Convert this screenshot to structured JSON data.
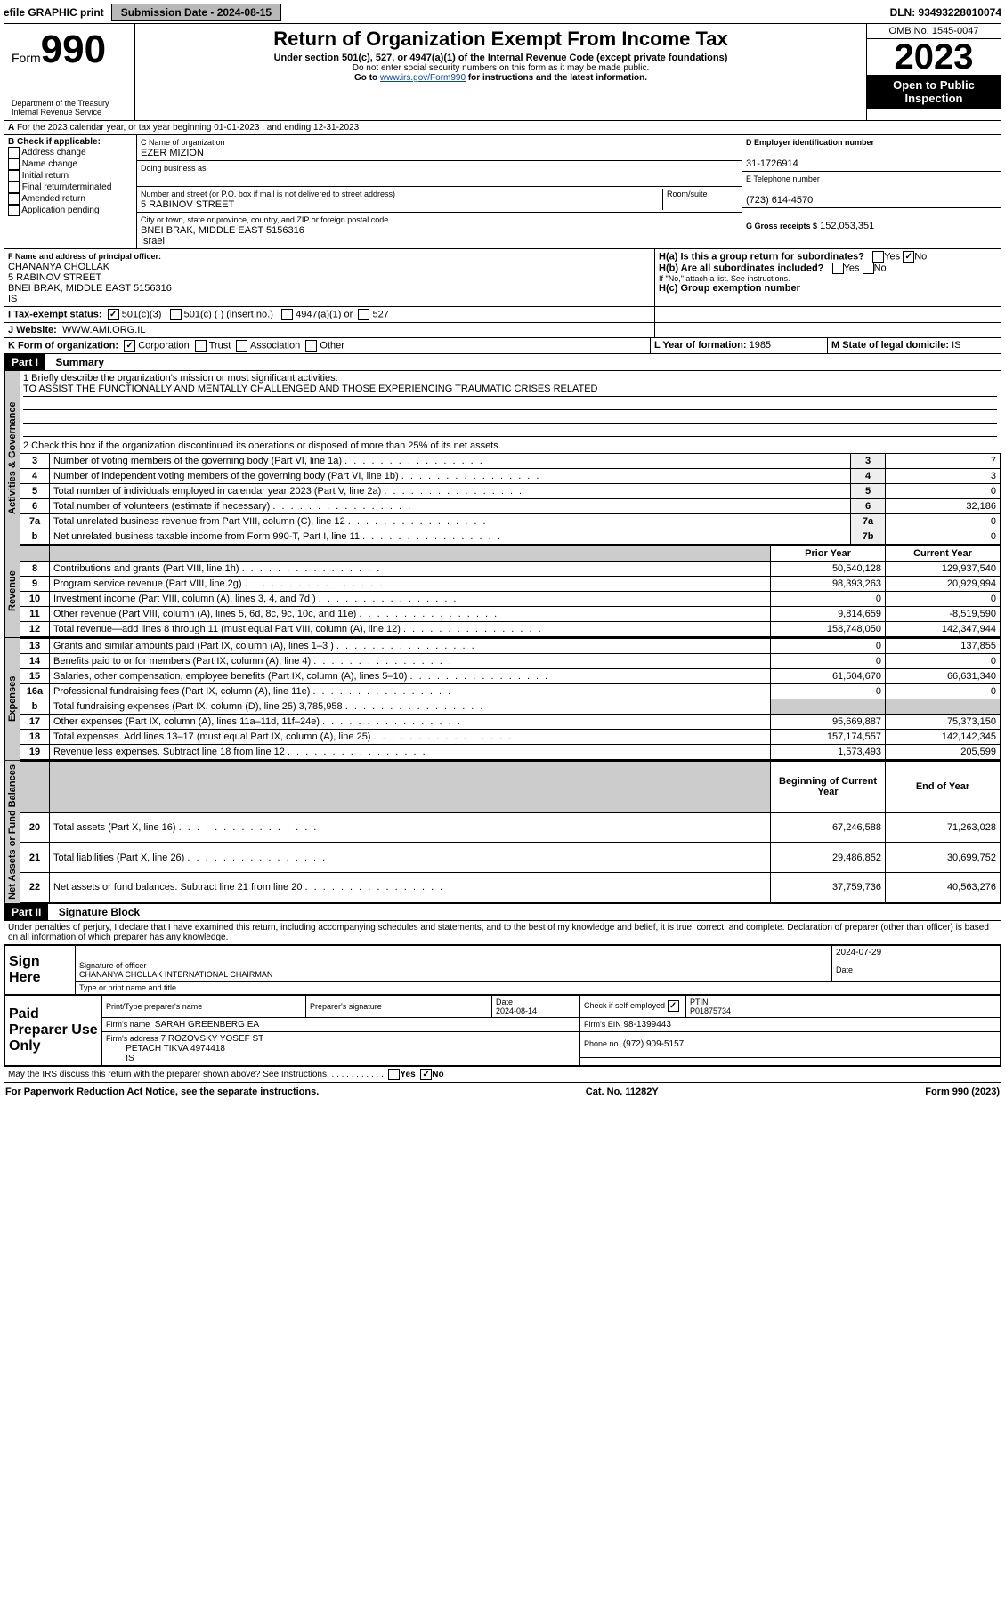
{
  "topbar": {
    "efile": "efile GRAPHIC print",
    "submission_label": "Submission Date - 2024-08-15",
    "dln": "DLN: 93493228010074"
  },
  "header": {
    "form_label": "Form",
    "form_number": "990",
    "dept": "Department of the Treasury Internal Revenue Service",
    "title": "Return of Organization Exempt From Income Tax",
    "sub1": "Under section 501(c), 527, or 4947(a)(1) of the Internal Revenue Code (except private foundations)",
    "sub2": "Do not enter social security numbers on this form as it may be made public.",
    "sub3_prefix": "Go to ",
    "sub3_link": "www.irs.gov/Form990",
    "sub3_suffix": " for instructions and the latest information.",
    "omb": "OMB No. 1545-0047",
    "year": "2023",
    "open": "Open to Public Inspection"
  },
  "line_a": "For the 2023 calendar year, or tax year beginning 01-01-2023  , and ending 12-31-2023",
  "section_b": {
    "header": "B Check if applicable:",
    "opts": [
      "Address change",
      "Name change",
      "Initial return",
      "Final return/terminated",
      "Amended return",
      "Application pending"
    ],
    "c_label": "C Name of organization",
    "c_name": "EZER MIZION",
    "dba_label": "Doing business as",
    "addr_label": "Number and street (or P.O. box if mail is not delivered to street address)",
    "room_label": "Room/suite",
    "addr": "5 RABINOV STREET",
    "city_label": "City or town, state or province, country, and ZIP or foreign postal code",
    "city": "BNEI BRAK, MIDDLE EAST  5156316",
    "country": "Israel",
    "d_label": "D Employer identification number",
    "d_val": "31-1726914",
    "e_label": "E Telephone number",
    "e_val": "(723) 614-4570",
    "g_label": "G Gross receipts $",
    "g_val": "152,053,351",
    "f_label": "F  Name and address of principal officer:",
    "f_name": "CHANANYA CHOLLAK",
    "f_addr1": "5 RABINOV STREET",
    "f_addr2": "BNEI BRAK, MIDDLE EAST  5156316",
    "f_addr3": "IS",
    "ha_label": "H(a)  Is this a group return for subordinates?",
    "hb_label": "H(b)  Are all subordinates included?",
    "hb_note": "If \"No,\" attach a list. See instructions.",
    "hc_label": "H(c)  Group exemption number",
    "yes": "Yes",
    "no": "No"
  },
  "line_i": {
    "label": "I  Tax-exempt status:",
    "opts": [
      "501(c)(3)",
      "501(c) (   ) (insert no.)",
      "4947(a)(1) or",
      "527"
    ]
  },
  "line_j": {
    "label": "J  Website:",
    "val": "WWW.AMI.ORG.IL"
  },
  "line_k": {
    "label": "K Form of organization:",
    "opts": [
      "Corporation",
      "Trust",
      "Association",
      "Other"
    ]
  },
  "line_l": {
    "label": "L Year of formation:",
    "val": "1985"
  },
  "line_m": {
    "label": "M State of legal domicile:",
    "val": "IS"
  },
  "part1": {
    "hdr": "Part I",
    "title": "Summary",
    "mission_label": "1  Briefly describe the organization's mission or most significant activities:",
    "mission": "TO ASSIST THE FUNCTIONALLY AND MENTALLY CHALLENGED AND THOSE EXPERIENCING TRAUMATIC CRISES RELATED",
    "line2": "2  Check this box        if the organization discontinued its operations or disposed of more than 25% of its net assets.",
    "tabs": {
      "gov": "Activities & Governance",
      "rev": "Revenue",
      "exp": "Expenses",
      "net": "Net Assets or Fund Balances"
    },
    "col_prior": "Prior Year",
    "col_current": "Current Year",
    "col_boy": "Beginning of Current Year",
    "col_eoy": "End of Year",
    "gov_lines": [
      {
        "n": "3",
        "txt": "Number of voting members of the governing body (Part VI, line 1a)",
        "box": "3",
        "val": "7"
      },
      {
        "n": "4",
        "txt": "Number of independent voting members of the governing body (Part VI, line 1b)",
        "box": "4",
        "val": "3"
      },
      {
        "n": "5",
        "txt": "Total number of individuals employed in calendar year 2023 (Part V, line 2a)",
        "box": "5",
        "val": "0"
      },
      {
        "n": "6",
        "txt": "Total number of volunteers (estimate if necessary)",
        "box": "6",
        "val": "32,186"
      },
      {
        "n": "7a",
        "txt": "Total unrelated business revenue from Part VIII, column (C), line 12",
        "box": "7a",
        "val": "0"
      },
      {
        "n": "b",
        "txt": "Net unrelated business taxable income from Form 990-T, Part I, line 11",
        "box": "7b",
        "val": "0"
      }
    ],
    "rev_lines": [
      {
        "n": "8",
        "txt": "Contributions and grants (Part VIII, line 1h)",
        "p": "50,540,128",
        "c": "129,937,540"
      },
      {
        "n": "9",
        "txt": "Program service revenue (Part VIII, line 2g)",
        "p": "98,393,263",
        "c": "20,929,994"
      },
      {
        "n": "10",
        "txt": "Investment income (Part VIII, column (A), lines 3, 4, and 7d )",
        "p": "0",
        "c": "0"
      },
      {
        "n": "11",
        "txt": "Other revenue (Part VIII, column (A), lines 5, 6d, 8c, 9c, 10c, and 11e)",
        "p": "9,814,659",
        "c": "-8,519,590"
      },
      {
        "n": "12",
        "txt": "Total revenue—add lines 8 through 11 (must equal Part VIII, column (A), line 12)",
        "p": "158,748,050",
        "c": "142,347,944"
      }
    ],
    "exp_lines": [
      {
        "n": "13",
        "txt": "Grants and similar amounts paid (Part IX, column (A), lines 1–3 )",
        "p": "0",
        "c": "137,855"
      },
      {
        "n": "14",
        "txt": "Benefits paid to or for members (Part IX, column (A), line 4)",
        "p": "0",
        "c": "0"
      },
      {
        "n": "15",
        "txt": "Salaries, other compensation, employee benefits (Part IX, column (A), lines 5–10)",
        "p": "61,504,670",
        "c": "66,631,340"
      },
      {
        "n": "16a",
        "txt": "Professional fundraising fees (Part IX, column (A), line 11e)",
        "p": "0",
        "c": "0"
      },
      {
        "n": "b",
        "txt": "Total fundraising expenses (Part IX, column (D), line 25) 3,785,958",
        "p": "",
        "c": ""
      },
      {
        "n": "17",
        "txt": "Other expenses (Part IX, column (A), lines 11a–11d, 11f–24e)",
        "p": "95,669,887",
        "c": "75,373,150"
      },
      {
        "n": "18",
        "txt": "Total expenses. Add lines 13–17 (must equal Part IX, column (A), line 25)",
        "p": "157,174,557",
        "c": "142,142,345"
      },
      {
        "n": "19",
        "txt": "Revenue less expenses. Subtract line 18 from line 12",
        "p": "1,573,493",
        "c": "205,599"
      }
    ],
    "net_lines": [
      {
        "n": "20",
        "txt": "Total assets (Part X, line 16)",
        "p": "67,246,588",
        "c": "71,263,028"
      },
      {
        "n": "21",
        "txt": "Total liabilities (Part X, line 26)",
        "p": "29,486,852",
        "c": "30,699,752"
      },
      {
        "n": "22",
        "txt": "Net assets or fund balances. Subtract line 21 from line 20",
        "p": "37,759,736",
        "c": "40,563,276"
      }
    ]
  },
  "part2": {
    "hdr": "Part II",
    "title": "Signature Block",
    "decl": "Under penalties of perjury, I declare that I have examined this return, including accompanying schedules and statements, and to the best of my knowledge and belief, it is true, correct, and complete. Declaration of preparer (other than officer) is based on all information of which preparer has any knowledge.",
    "sign_here": "Sign Here",
    "sig_label": "Signature of officer",
    "date_label": "Date",
    "officer": "CHANANYA CHOLLAK  INTERNATIONAL CHAIRMAN",
    "name_label": "Type or print name and title",
    "sig_date": "2024-07-29",
    "paid": "Paid Preparer Use Only",
    "prep_name_label": "Print/Type preparer's name",
    "prep_sig_label": "Preparer's signature",
    "prep_date_label": "Date",
    "prep_date": "2024-08-14",
    "check_label": "Check         if self-employed",
    "ptin_label": "PTIN",
    "ptin": "P01875734",
    "firm_name_label": "Firm's name",
    "firm_name": "SARAH GREENBERG EA",
    "firm_ein_label": "Firm's EIN",
    "firm_ein": "98-1399443",
    "firm_addr_label": "Firm's address",
    "firm_addr1": "7 ROZOVSKY YOSEF ST",
    "firm_addr2": "PETACH TIKVA  4974418",
    "firm_addr3": "IS",
    "phone_label": "Phone no.",
    "phone": "(972) 909-5157",
    "discuss": "May the IRS discuss this return with the preparer shown above? See Instructions."
  },
  "footer": {
    "left": "For Paperwork Reduction Act Notice, see the separate instructions.",
    "mid": "Cat. No. 11282Y",
    "right": "Form 990 (2023)"
  }
}
